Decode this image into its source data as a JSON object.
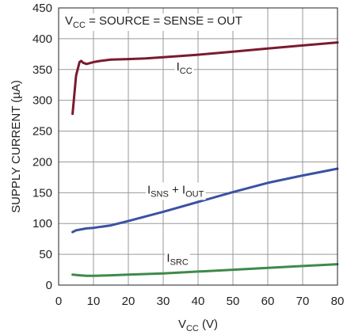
{
  "chart_data": {
    "type": "line",
    "title": "",
    "annotation_top": {
      "main": "V",
      "sub": "CC",
      "rest": " = SOURCE = SENSE = OUT"
    },
    "xlabel": {
      "main": "V",
      "sub": "CC",
      "rest": " (V)"
    },
    "ylabel": "SUPPLY CURRENT (µA)",
    "xlim": [
      0,
      80
    ],
    "ylim": [
      0,
      450
    ],
    "xticks": [
      0,
      10,
      20,
      30,
      40,
      50,
      60,
      70,
      80
    ],
    "yticks": [
      0,
      50,
      100,
      150,
      200,
      250,
      300,
      350,
      400,
      450
    ],
    "grid": true,
    "series": [
      {
        "name": "I_CC",
        "label": {
          "main": "I",
          "sub": "CC",
          "rest": ""
        },
        "color": "#7b1a2e",
        "x": [
          4,
          5,
          6,
          6.5,
          7,
          8,
          10,
          12,
          15,
          20,
          25,
          30,
          40,
          50,
          60,
          70,
          80
        ],
        "y": [
          278,
          340,
          362,
          364,
          361,
          359,
          362,
          364,
          366,
          367,
          368,
          370,
          374,
          379,
          384,
          389,
          394
        ]
      },
      {
        "name": "I_SNS + I_OUT",
        "label": {
          "main": "I",
          "sub": "SNS",
          "rest": " + I",
          "sub2": "OUT"
        },
        "color": "#3a52a4",
        "x": [
          4,
          5,
          6,
          8,
          10,
          15,
          20,
          30,
          40,
          50,
          60,
          70,
          80
        ],
        "y": [
          86,
          89,
          90,
          92,
          93,
          97,
          104,
          119,
          135,
          151,
          166,
          178,
          189
        ],
        "label_x": 40
      },
      {
        "name": "I_SRC",
        "label": {
          "main": "I",
          "sub": "SRC",
          "rest": ""
        },
        "color": "#3e8a4a",
        "x": [
          4,
          6,
          8,
          10,
          15,
          20,
          30,
          40,
          50,
          60,
          70,
          80
        ],
        "y": [
          17,
          16,
          15,
          15,
          16,
          17,
          19,
          22,
          25,
          28,
          31,
          34
        ]
      }
    ]
  }
}
